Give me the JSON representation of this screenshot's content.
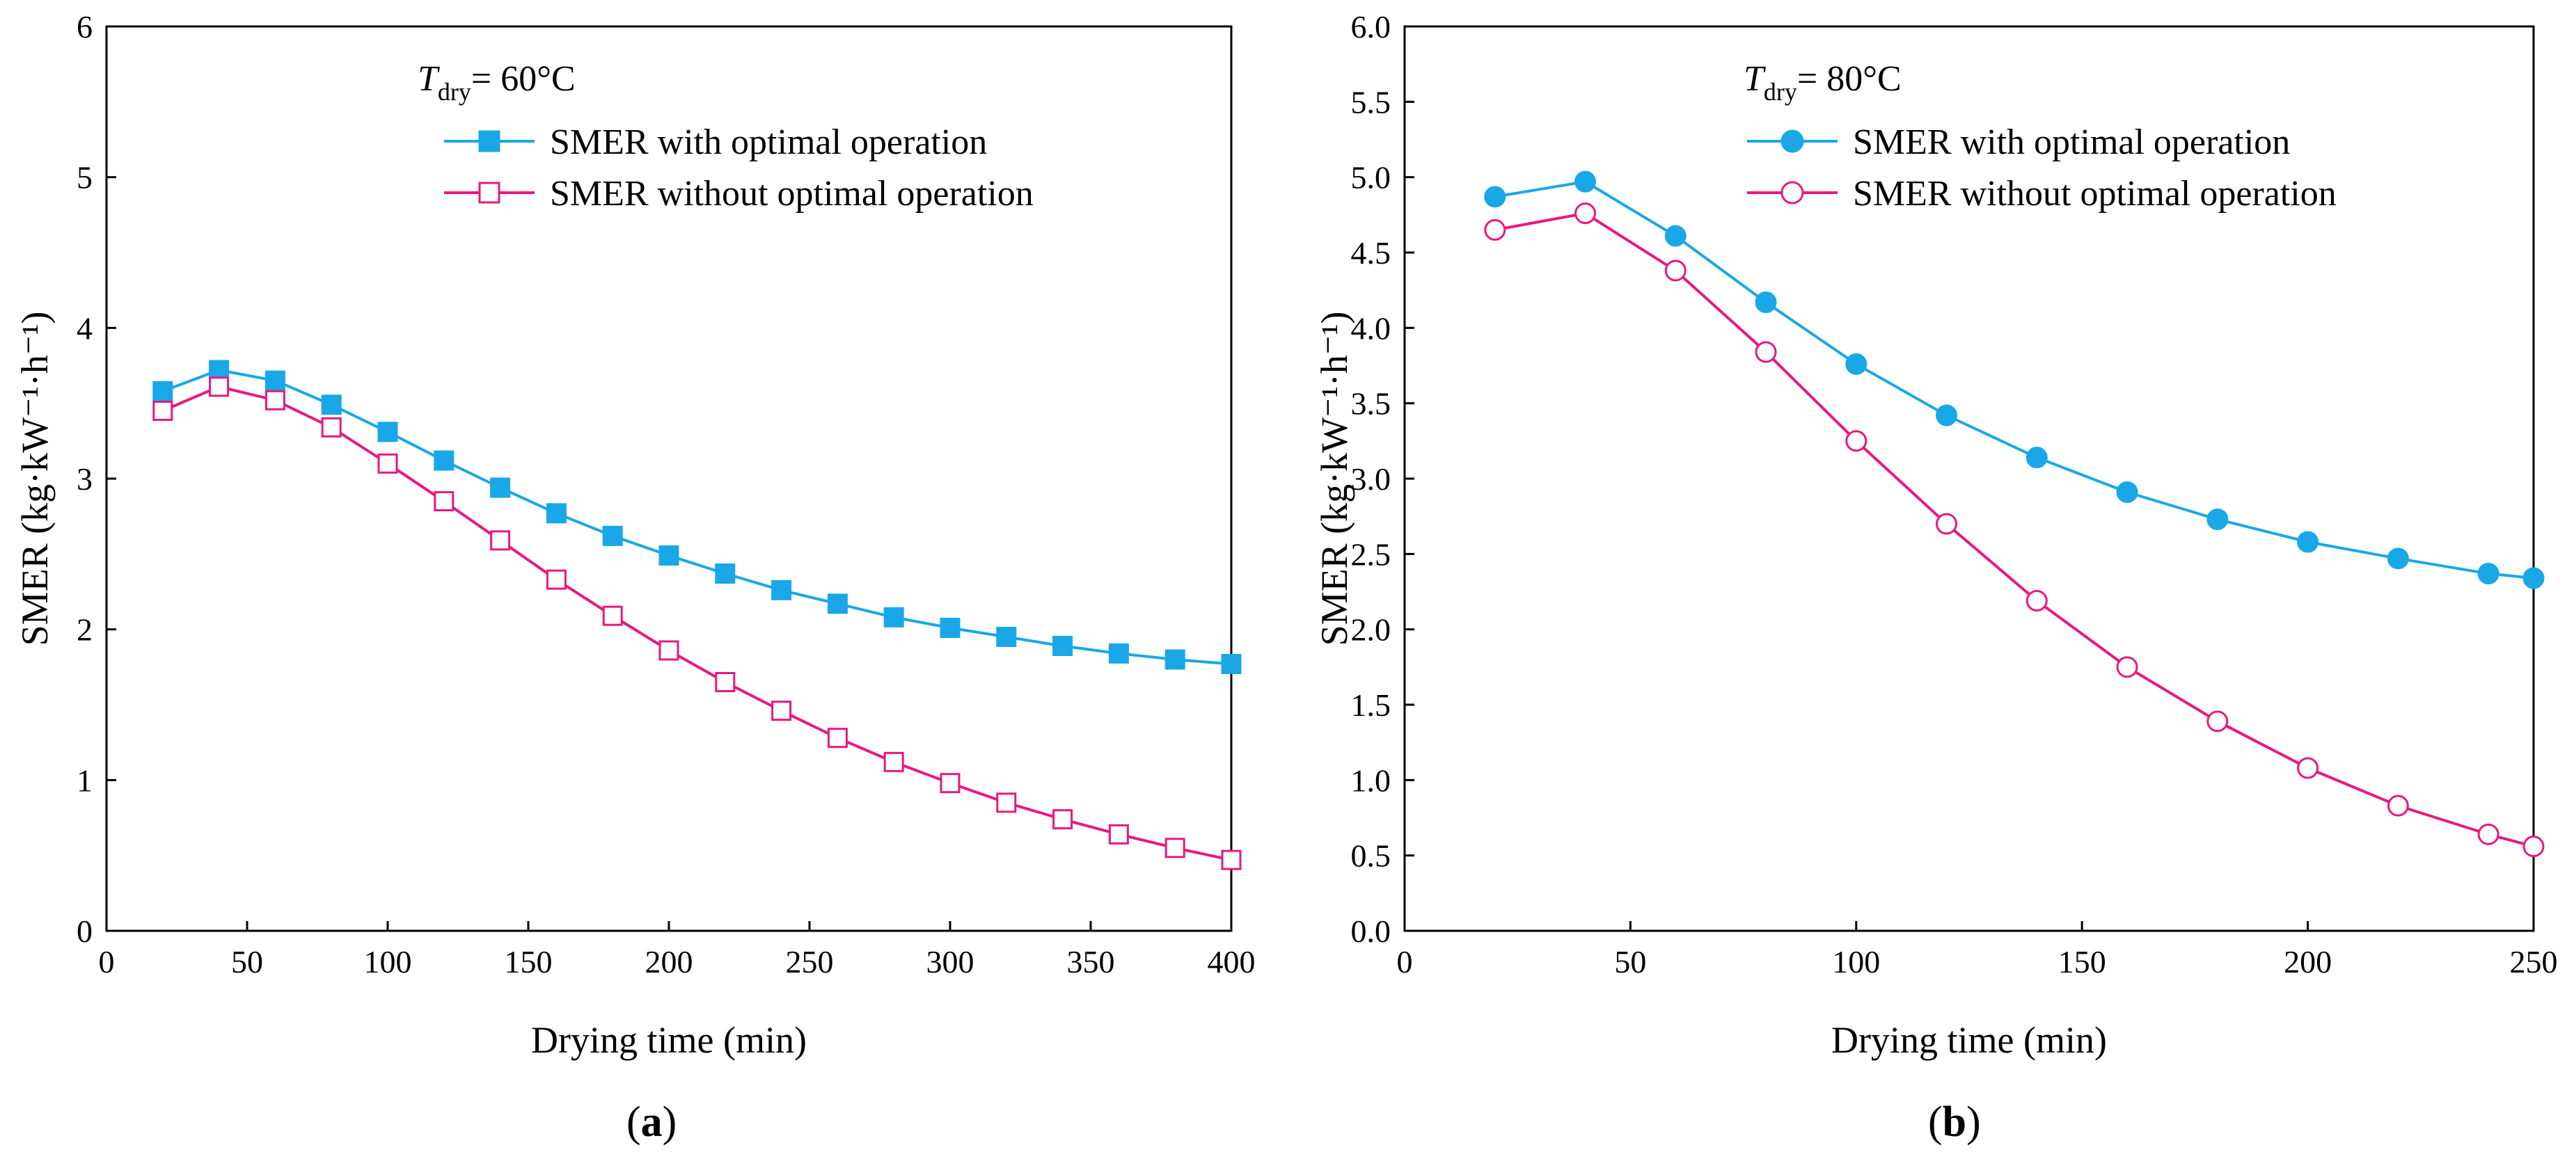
{
  "chart_data": [
    {
      "type": "line",
      "panel_label": "a",
      "condition": {
        "symbol": "T",
        "subscript": "dry",
        "suffix": "= 60°C"
      },
      "xlabel": "Drying time (min)",
      "ylabel": "SMER (kg·kW⁻¹·h⁻¹)",
      "xlim": [
        0,
        400
      ],
      "ylim": [
        0,
        6
      ],
      "xticks": [
        0,
        50,
        100,
        150,
        200,
        250,
        300,
        350,
        400
      ],
      "yticks": [
        0,
        1,
        2,
        3,
        4,
        5,
        6
      ],
      "ytick_labels": [
        "0",
        "1",
        "2",
        "3",
        "4",
        "5",
        "6"
      ],
      "legend_position": "top-right",
      "x": [
        20,
        40,
        60,
        80,
        100,
        120,
        140,
        160,
        180,
        200,
        220,
        240,
        260,
        280,
        300,
        320,
        340,
        360,
        380,
        400
      ],
      "series": [
        {
          "name": "SMER with optimal operation",
          "color": "#1aa7e8",
          "marker": "filled-square",
          "values": [
            3.58,
            3.72,
            3.65,
            3.49,
            3.31,
            3.12,
            2.94,
            2.77,
            2.62,
            2.49,
            2.37,
            2.26,
            2.17,
            2.08,
            2.01,
            1.95,
            1.89,
            1.84,
            1.8,
            1.77
          ]
        },
        {
          "name": "SMER without optimal operation",
          "color": "#e8197f",
          "marker": "open-square",
          "values": [
            3.45,
            3.61,
            3.52,
            3.34,
            3.1,
            2.85,
            2.59,
            2.33,
            2.09,
            1.86,
            1.65,
            1.46,
            1.28,
            1.12,
            0.98,
            0.85,
            0.74,
            0.64,
            0.55,
            0.47
          ]
        }
      ]
    },
    {
      "type": "line",
      "panel_label": "b",
      "condition": {
        "symbol": "T",
        "subscript": "dry",
        "suffix": "= 80°C"
      },
      "xlabel": "Drying time (min)",
      "ylabel": "SMER (kg·kW⁻¹·h⁻¹)",
      "xlim": [
        0,
        250
      ],
      "ylim": [
        0,
        6
      ],
      "xticks": [
        0,
        50,
        100,
        150,
        200,
        250
      ],
      "yticks": [
        0,
        0.5,
        1,
        1.5,
        2,
        2.5,
        3,
        3.5,
        4,
        4.5,
        5,
        5.5,
        6
      ],
      "ytick_labels": [
        "0.0",
        "0.5",
        "1.0",
        "1.5",
        "2.0",
        "2.5",
        "3.0",
        "3.5",
        "4.0",
        "4.5",
        "5.0",
        "5.5",
        "6.0"
      ],
      "legend_position": "top-right",
      "x": [
        20,
        40,
        60,
        80,
        100,
        120,
        140,
        160,
        180,
        200,
        220,
        240,
        250
      ],
      "series": [
        {
          "name": "SMER with optimal operation",
          "color": "#1aa7e8",
          "marker": "filled-circle",
          "values": [
            4.87,
            4.97,
            4.61,
            4.17,
            3.76,
            3.42,
            3.14,
            2.91,
            2.73,
            2.58,
            2.47,
            2.37,
            2.34
          ]
        },
        {
          "name": "SMER without optimal operation",
          "color": "#e8197f",
          "marker": "open-circle",
          "values": [
            4.65,
            4.76,
            4.38,
            3.84,
            3.25,
            2.7,
            2.19,
            1.75,
            1.39,
            1.08,
            0.83,
            0.64,
            0.56
          ]
        }
      ]
    }
  ]
}
